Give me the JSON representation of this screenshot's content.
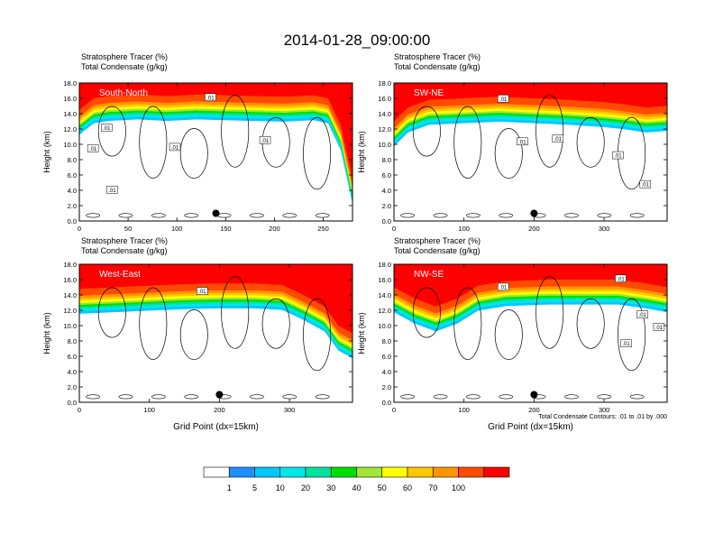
{
  "title": "2014-01-28_09:00:00",
  "panel_subtitle_line1": "Stratosphere Tracer   (%)",
  "panel_subtitle_line2": "Total Condensate   (g/kg)",
  "contour_note": "Total Condensate Contours: .01 to .01 by .000",
  "colorbar": {
    "labels": [
      "1",
      "5",
      "10",
      "20",
      "30",
      "40",
      "50",
      "60",
      "70",
      "100"
    ],
    "colors": [
      "#ffffff",
      "#1e8fff",
      "#00c8ff",
      "#00e8e8",
      "#00e2a0",
      "#00e000",
      "#a0e632",
      "#ffff00",
      "#ffc800",
      "#ff9600",
      "#ff4b00",
      "#ff0000"
    ]
  },
  "chart_data": [
    {
      "type": "heatmap",
      "region_label": "South-North",
      "xlim": [
        0,
        280
      ],
      "xticks": [
        0,
        50,
        100,
        150,
        200,
        250
      ],
      "ylim": [
        0,
        18
      ],
      "yticks": [
        "0.0",
        "2.0",
        "4.0",
        "6.0",
        "8.0",
        "10.0",
        "12.0",
        "14.0",
        "16.0",
        "18.0"
      ],
      "ylabel": "Height (km)",
      "xlabel": "",
      "marker": {
        "x": 140,
        "y": 1.0
      },
      "tropopause_km": [
        14.5,
        16.0,
        16.3,
        16.5,
        16.3,
        16.5,
        16.4,
        16.3,
        16.2,
        16.4,
        16.0,
        12.5,
        5.5
      ],
      "tropopause_x": [
        0,
        15,
        30,
        60,
        90,
        120,
        150,
        180,
        210,
        240,
        255,
        268,
        280
      ],
      "contour_labels": [
        ".01",
        ".01",
        ".01",
        ".01",
        ".01",
        ".01"
      ]
    },
    {
      "type": "heatmap",
      "region_label": "SW-NE",
      "xlim": [
        0,
        390
      ],
      "xticks": [
        0,
        100,
        200,
        300
      ],
      "ylim": [
        0,
        18
      ],
      "yticks": [
        "0.0",
        "2.0",
        "4.0",
        "6.0",
        "8.0",
        "10.0",
        "12.0",
        "14.0",
        "16.0",
        "18.0"
      ],
      "ylabel": "Height (km)",
      "xlabel": "",
      "marker": {
        "x": 200,
        "y": 1.0
      },
      "tropopause_km": [
        13.0,
        14.8,
        15.8,
        16.0,
        16.2,
        16.0,
        15.8,
        15.5,
        15.2,
        14.8,
        15.0
      ],
      "tropopause_x": [
        0,
        20,
        50,
        100,
        150,
        200,
        250,
        300,
        330,
        360,
        390
      ],
      "contour_labels": [
        ".01",
        ".01",
        ".01",
        ".01",
        ".01"
      ]
    },
    {
      "type": "heatmap",
      "region_label": "West-East",
      "xlim": [
        0,
        390
      ],
      "xticks": [
        0,
        100,
        200,
        300
      ],
      "ylim": [
        0,
        18
      ],
      "yticks": [
        "0.0",
        "2.0",
        "4.0",
        "6.0",
        "8.0",
        "10.0",
        "12.0",
        "14.0",
        "16.0",
        "18.0"
      ],
      "ylabel": "Height (km)",
      "xlabel": "Grid Point (dx=15km)",
      "marker": {
        "x": 200,
        "y": 1.0
      },
      "tropopause_km": [
        14.8,
        15.0,
        15.2,
        15.4,
        15.5,
        15.5,
        15.3,
        14.0,
        12.5,
        10.0,
        9.0
      ],
      "tropopause_x": [
        0,
        50,
        100,
        150,
        200,
        250,
        290,
        320,
        350,
        370,
        390
      ],
      "contour_labels": [
        ".01"
      ]
    },
    {
      "type": "heatmap",
      "region_label": "NW-SE",
      "xlim": [
        0,
        390
      ],
      "xticks": [
        0,
        100,
        200,
        300
      ],
      "ylim": [
        0,
        18
      ],
      "yticks": [
        "0.0",
        "2.0",
        "4.0",
        "6.0",
        "8.0",
        "10.0",
        "12.0",
        "14.0",
        "16.0",
        "18.0"
      ],
      "ylabel": "Height (km)",
      "xlabel": "Grid Point (dx=15km)",
      "marker": {
        "x": 200,
        "y": 1.0
      },
      "tropopause_km": [
        15.0,
        13.5,
        12.5,
        13.5,
        15.2,
        15.8,
        16.0,
        16.0,
        16.0,
        15.5,
        15.0
      ],
      "tropopause_x": [
        0,
        30,
        60,
        90,
        120,
        160,
        220,
        280,
        320,
        360,
        390
      ],
      "contour_labels": [
        ".01",
        ".01",
        ".01",
        ".01",
        ".01"
      ]
    }
  ]
}
